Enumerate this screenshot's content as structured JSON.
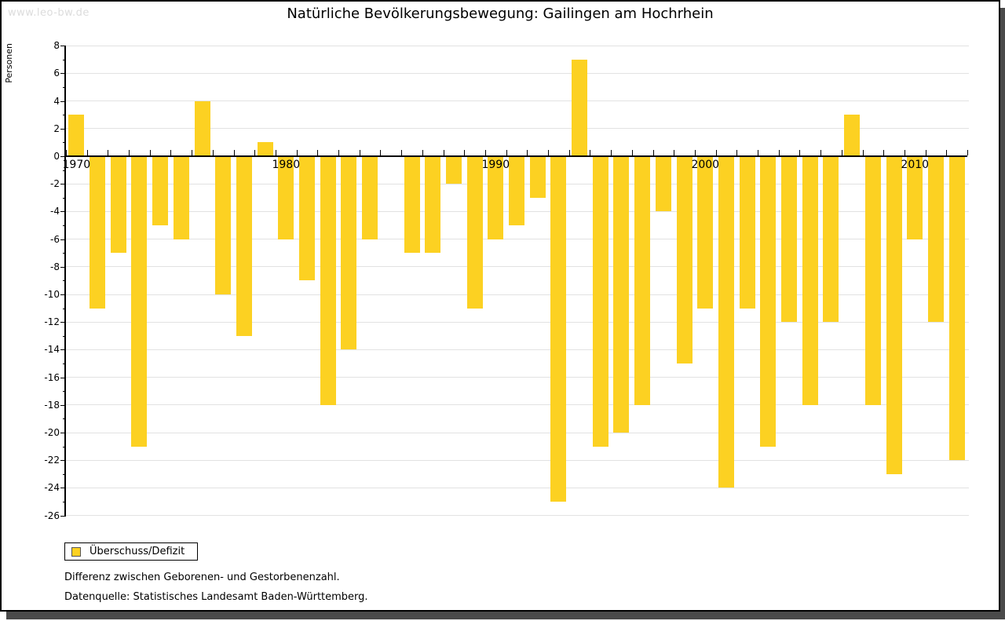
{
  "page": {
    "watermark": "www.leo-bw.de",
    "title": "Natürliche Bevölkerungsbewegung: Gailingen am Hochrhein",
    "footnote_definition": "Differenz zwischen Geborenen- und Gestorbenenzahl.",
    "footnote_source": "Datenquelle: Statistisches Landesamt Baden-Württemberg."
  },
  "legend": {
    "label": "Überschuss/Defizit"
  },
  "colors": {
    "bar_fill": "#FCD122",
    "swatch_border": "#555555",
    "gridline": "#E2E2E2",
    "axis": "#000000",
    "watermark_text": "#DCDCDC",
    "frame_shadow": "#4A4A4A"
  },
  "chart_data": {
    "type": "bar",
    "title": "Natürliche Bevölkerungsbewegung: Gailingen am Hochrhein",
    "xlabel": "",
    "ylabel": "Personen",
    "ylim": [
      -26,
      8
    ],
    "y_tick_step": 2,
    "grid": "horizontal",
    "legend_position": "bottom-left",
    "legend_entries": [
      "Überschuss/Defizit"
    ],
    "x_axis_labeled_years": [
      1970,
      1980,
      1990,
      2000,
      2010
    ],
    "years": [
      1970,
      1971,
      1972,
      1973,
      1974,
      1975,
      1976,
      1977,
      1978,
      1979,
      1980,
      1981,
      1982,
      1983,
      1984,
      1985,
      1986,
      1987,
      1988,
      1989,
      1990,
      1991,
      1992,
      1993,
      1994,
      1995,
      1996,
      1997,
      1998,
      1999,
      2000,
      2001,
      2002,
      2003,
      2004,
      2005,
      2006,
      2007,
      2008,
      2009,
      2010,
      2011,
      2012
    ],
    "values": [
      3,
      -11,
      -7,
      -21,
      -5,
      -6,
      4,
      -10,
      -13,
      1,
      -6,
      -9,
      -18,
      -14,
      -6,
      0,
      -7,
      -7,
      -2,
      -11,
      -6,
      -5,
      -3,
      -25,
      7,
      -21,
      -20,
      -18,
      -4,
      -15,
      -11,
      -24,
      -11,
      -21,
      -12,
      -18,
      -12,
      3,
      -18,
      -23,
      -6,
      -12,
      -22
    ]
  }
}
